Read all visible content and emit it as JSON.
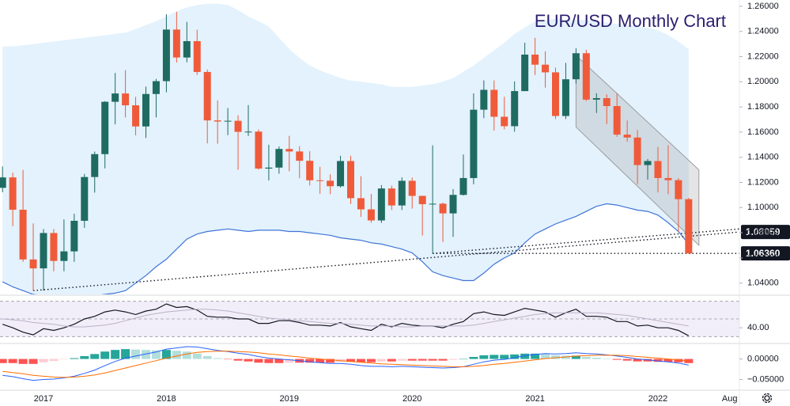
{
  "chart_data": [
    {
      "type": "candlestick",
      "title": "EUR/USD Monthly Chart",
      "categories": [
        null,
        null,
        null,
        null,
        "2017",
        null,
        null,
        null,
        null,
        null,
        null,
        null,
        null,
        null,
        null,
        null,
        "2018",
        null,
        null,
        null,
        null,
        null,
        null,
        null,
        null,
        null,
        null,
        null,
        "2019",
        null,
        null,
        null,
        null,
        null,
        null,
        null,
        null,
        null,
        null,
        null,
        "2020",
        null,
        null,
        null,
        null,
        null,
        null,
        null,
        null,
        null,
        null,
        null,
        "2021",
        null,
        null,
        null,
        null,
        null,
        null,
        null,
        null,
        null,
        null,
        null,
        "2022",
        null,
        null,
        null,
        null,
        null,
        null,
        "Aug"
      ],
      "open": [
        1.1157,
        1.124,
        1.0983,
        1.0588,
        1.0517,
        1.0798,
        1.0576,
        1.0652,
        1.0895,
        1.1243,
        1.1425,
        1.1841,
        1.1907,
        1.1813,
        1.1645,
        1.1903,
        1.2005,
        1.2415,
        1.2193,
        1.2323,
        1.2078,
        1.1693,
        1.1684,
        1.169,
        1.1602,
        1.1604,
        1.131,
        1.1318,
        1.1466,
        1.1446,
        1.1372,
        1.1217,
        1.1214,
        1.117,
        1.137,
        1.1075,
        1.0986,
        1.0898,
        1.1152,
        1.1017,
        1.1213,
        1.1093,
        1.1027,
        1.1031,
        1.0954,
        1.1101,
        1.1235,
        1.1778,
        1.1936,
        1.1722,
        1.1647,
        1.1926,
        1.2216,
        1.2136,
        1.2075,
        1.1728,
        1.202,
        1.2227,
        1.1858,
        1.187,
        1.1807,
        1.158,
        1.1557,
        1.1338,
        1.137,
        1.1235,
        1.1218,
        1.1067,
        null,
        null,
        null,
        null
      ],
      "high": [
        1.1327,
        1.1278,
        1.13,
        1.0874,
        1.0829,
        1.0829,
        1.0906,
        1.0951,
        1.1268,
        1.1445,
        1.1846,
        1.207,
        1.2092,
        1.188,
        1.1961,
        1.2023,
        1.2537,
        1.2556,
        1.2476,
        1.2414,
        1.2097,
        1.1852,
        1.1791,
        1.1734,
        1.1815,
        1.1621,
        1.15,
        1.1486,
        1.157,
        1.1488,
        1.1448,
        1.1324,
        1.1265,
        1.1412,
        1.1412,
        1.125,
        1.1109,
        1.1179,
        1.1175,
        1.124,
        1.1239,
        1.1095,
        1.1495,
        1.104,
        1.1147,
        1.1422,
        1.1908,
        1.2011,
        1.2011,
        1.1881,
        1.2003,
        1.231,
        1.2349,
        1.2243,
        1.2113,
        1.215,
        1.2266,
        1.2254,
        1.1909,
        1.19,
        1.1909,
        1.1692,
        1.1616,
        1.1386,
        1.1482,
        1.1495,
        1.1234,
        1.1077,
        null,
        null,
        null,
        null
      ],
      "low": [
        1.1122,
        1.0852,
        1.0569,
        1.034,
        1.0341,
        1.0494,
        1.0494,
        1.0569,
        1.0839,
        1.1119,
        1.1312,
        1.1662,
        1.1717,
        1.1574,
        1.1554,
        1.1717,
        1.1916,
        1.2153,
        1.2155,
        1.2055,
        1.151,
        1.1508,
        1.1576,
        1.1301,
        1.1569,
        1.1302,
        1.1216,
        1.1269,
        1.1289,
        1.1234,
        1.1176,
        1.111,
        1.1107,
        1.116,
        1.1028,
        1.0926,
        1.0879,
        1.0879,
        1.0981,
        1.0981,
        1.0992,
        1.0778,
        1.0636,
        1.0727,
        1.0767,
        1.1096,
        1.1185,
        1.1711,
        1.1612,
        1.1622,
        1.1603,
        1.1925,
        1.2054,
        1.1953,
        1.1704,
        1.1704,
        1.1986,
        1.1847,
        1.1752,
        1.1664,
        1.1563,
        1.1524,
        1.1186,
        1.1222,
        1.1121,
        1.1106,
        1.0806,
        1.0636,
        null,
        null,
        null,
        null
      ],
      "close": [
        1.124,
        1.0983,
        1.0588,
        1.0517,
        1.0798,
        1.0576,
        1.0652,
        1.0895,
        1.1243,
        1.1425,
        1.1841,
        1.1907,
        1.1813,
        1.1645,
        1.1903,
        1.2005,
        1.2415,
        1.2193,
        1.2323,
        1.2078,
        1.1693,
        1.1684,
        1.169,
        1.1602,
        1.1604,
        1.131,
        1.1318,
        1.1466,
        1.1446,
        1.1372,
        1.1217,
        1.1214,
        1.117,
        1.137,
        1.1075,
        1.0986,
        1.0898,
        1.1152,
        1.1017,
        1.1213,
        1.1093,
        1.1027,
        1.1031,
        1.0954,
        1.1101,
        1.1235,
        1.1778,
        1.1936,
        1.1722,
        1.1647,
        1.1926,
        1.2216,
        1.2136,
        1.2075,
        1.1728,
        1.202,
        1.2227,
        1.1858,
        1.187,
        1.1807,
        1.158,
        1.1557,
        1.1338,
        1.137,
        1.1235,
        1.1218,
        1.1067,
        1.0636,
        null,
        null,
        null,
        null
      ],
      "up_color": "#1f6b62",
      "down_color": "#ef5b3a",
      "bands": {
        "upper": [
          1.228,
          1.228,
          1.229,
          1.23,
          1.231,
          1.232,
          1.233,
          1.234,
          1.235,
          1.236,
          1.237,
          1.238,
          1.239,
          1.242,
          1.245,
          1.248,
          1.252,
          1.256,
          1.259,
          1.261,
          1.262,
          1.262,
          1.261,
          1.257,
          1.252,
          1.248,
          1.244,
          1.235,
          1.226,
          1.219,
          1.213,
          1.209,
          1.206,
          1.203,
          1.201,
          1.2,
          1.199,
          1.198,
          1.196,
          1.196,
          1.196,
          1.197,
          1.198,
          1.2,
          1.203,
          1.208,
          1.213,
          1.219,
          1.225,
          1.231,
          1.238,
          1.243,
          1.248,
          1.249,
          1.25,
          1.25,
          1.249,
          1.249,
          1.248,
          1.247,
          1.246,
          1.245,
          1.244,
          1.243,
          1.241,
          1.237,
          1.232,
          1.226,
          null,
          null,
          null,
          null
        ],
        "lower": [
          1.041,
          1.037,
          1.034,
          1.031,
          1.03,
          1.029,
          1.029,
          1.029,
          1.029,
          1.03,
          1.031,
          1.032,
          1.034,
          1.04,
          1.046,
          1.053,
          1.059,
          1.067,
          1.075,
          1.079,
          1.081,
          1.082,
          1.083,
          1.082,
          1.081,
          1.082,
          1.082,
          1.082,
          1.081,
          1.081,
          1.08,
          1.079,
          1.078,
          1.076,
          1.075,
          1.074,
          1.072,
          1.071,
          1.069,
          1.067,
          1.064,
          1.057,
          1.049,
          1.046,
          1.044,
          1.042,
          1.042,
          1.048,
          1.055,
          1.06,
          1.064,
          1.072,
          1.079,
          1.083,
          1.087,
          1.09,
          1.093,
          1.097,
          1.101,
          1.103,
          1.102,
          1.1,
          1.098,
          1.097,
          1.094,
          1.088,
          1.081,
          1.071,
          null,
          null,
          null,
          null
        ],
        "fill": "#e3f2fd",
        "line_color": "#3f74d6"
      },
      "channel": {
        "upper": [
          1.221,
          1.13
        ],
        "lower": [
          1.164,
          1.07
        ],
        "color": "#9e9e9e"
      },
      "lines": [
        {
          "values": [
            1.034,
            1.08059
          ],
          "label": "1.08059"
        },
        {
          "values": [
            1.0636,
            1.0636
          ],
          "label": "1.06360"
        },
        {
          "values": [
            1.0636,
            1.083
          ]
        }
      ],
      "ylim": [
        1.031,
        1.265
      ],
      "yticks": [
        {
          "value": 1.26,
          "label": "1.26000"
        },
        {
          "value": 1.24,
          "label": "1.24000"
        },
        {
          "value": 1.22,
          "label": "1.22000"
        },
        {
          "value": 1.2,
          "label": "1.20000"
        },
        {
          "value": 1.18,
          "label": "1.18000"
        },
        {
          "value": 1.16,
          "label": "1.16000"
        },
        {
          "value": 1.14,
          "label": "1.14000"
        },
        {
          "value": 1.12,
          "label": "1.12000"
        },
        {
          "value": 1.1,
          "label": "1.10000"
        },
        {
          "value": 1.08,
          "label": "1.08000"
        },
        {
          "value": 1.06,
          "label": "1.06000"
        },
        {
          "value": 1.04,
          "label": "1.04000"
        }
      ]
    },
    {
      "type": "line",
      "series": [
        {
          "color": "#131722",
          "values": [
            44,
            40,
            35,
            32,
            39,
            37,
            40,
            44,
            50,
            53,
            58,
            60,
            58,
            55,
            59,
            61,
            67,
            63,
            64,
            60,
            53,
            52,
            52,
            50,
            50,
            45,
            45,
            48,
            48,
            46,
            43,
            43,
            42,
            46,
            41,
            39,
            37,
            44,
            41,
            45,
            43,
            42,
            42,
            40,
            44,
            47,
            56,
            58,
            55,
            54,
            58,
            62,
            60,
            58,
            52,
            57,
            61,
            53,
            53,
            52,
            47,
            47,
            42,
            43,
            40,
            40,
            37,
            31,
            null,
            null,
            null,
            null
          ]
        },
        {
          "color": "#b9b2c8",
          "values": [
            50,
            49,
            48,
            46,
            45,
            44,
            42,
            41,
            41,
            42,
            43,
            45,
            48,
            51,
            54,
            56,
            58,
            59,
            60,
            61,
            61,
            60,
            59,
            57,
            55,
            53,
            51,
            50,
            49,
            48,
            47,
            46,
            45,
            45,
            44,
            43,
            42,
            42,
            42,
            41,
            41,
            42,
            42,
            42,
            42,
            42,
            43,
            45,
            47,
            49,
            51,
            53,
            55,
            56,
            57,
            57,
            57,
            57,
            57,
            56,
            55,
            54,
            52,
            50,
            48,
            46,
            44,
            42,
            null,
            null,
            null,
            null
          ]
        }
      ],
      "levels": [
        70,
        50,
        30
      ],
      "band_color": "#7e57c2",
      "ylim": [
        24,
        76
      ],
      "yticks": [
        {
          "value": 40,
          "label": "40.00"
        }
      ]
    },
    {
      "type": "bar",
      "values": [
        -0.01,
        -0.01,
        -0.012,
        -0.012,
        -0.008,
        -0.005,
        -0.001,
        0.002,
        0.007,
        0.012,
        0.018,
        0.022,
        0.024,
        0.023,
        0.022,
        0.021,
        0.022,
        0.02,
        0.018,
        0.013,
        0.007,
        0.002,
        -0.001,
        -0.004,
        -0.006,
        -0.009,
        -0.01,
        -0.01,
        -0.009,
        -0.009,
        -0.009,
        -0.009,
        -0.009,
        -0.007,
        -0.007,
        -0.008,
        -0.008,
        -0.006,
        -0.006,
        -0.004,
        -0.004,
        -0.004,
        -0.004,
        -0.004,
        -0.002,
        0.0,
        0.005,
        0.009,
        0.01,
        0.01,
        0.011,
        0.013,
        0.013,
        0.012,
        0.009,
        0.008,
        0.008,
        0.005,
        0.003,
        0.001,
        -0.002,
        -0.004,
        -0.006,
        -0.006,
        -0.007,
        -0.007,
        -0.008,
        -0.01,
        null,
        null,
        null,
        null
      ],
      "colors": {
        "rising_above": "#26a69a",
        "falling_above": "#b2dfdb",
        "rising_below": "#ffcdd2",
        "falling_below": "#ff5252"
      },
      "series": [
        {
          "color": "#2962ff",
          "values": [
            -0.04,
            -0.043,
            -0.048,
            -0.052,
            -0.05,
            -0.049,
            -0.046,
            -0.042,
            -0.035,
            -0.027,
            -0.016,
            -0.006,
            0.002,
            0.007,
            0.012,
            0.017,
            0.024,
            0.027,
            0.03,
            0.029,
            0.025,
            0.021,
            0.018,
            0.014,
            0.011,
            0.006,
            0.002,
            0.0,
            -0.002,
            -0.004,
            -0.007,
            -0.009,
            -0.011,
            -0.011,
            -0.013,
            -0.016,
            -0.018,
            -0.018,
            -0.019,
            -0.018,
            -0.019,
            -0.02,
            -0.021,
            -0.022,
            -0.021,
            -0.019,
            -0.013,
            -0.007,
            -0.003,
            -0.001,
            0.003,
            0.008,
            0.011,
            0.013,
            0.012,
            0.013,
            0.015,
            0.013,
            0.012,
            0.01,
            0.007,
            0.004,
            0.0,
            -0.002,
            -0.005,
            -0.007,
            -0.01,
            -0.015,
            null,
            null,
            null,
            null
          ]
        },
        {
          "color": "#ff6d00",
          "values": [
            -0.03,
            -0.033,
            -0.036,
            -0.04,
            -0.042,
            -0.044,
            -0.045,
            -0.044,
            -0.042,
            -0.039,
            -0.034,
            -0.028,
            -0.022,
            -0.016,
            -0.01,
            -0.004,
            0.002,
            0.007,
            0.012,
            0.016,
            0.018,
            0.019,
            0.019,
            0.018,
            0.017,
            0.015,
            0.012,
            0.01,
            0.007,
            0.005,
            0.002,
            0.0,
            -0.002,
            -0.004,
            -0.006,
            -0.008,
            -0.01,
            -0.012,
            -0.013,
            -0.014,
            -0.015,
            -0.016,
            -0.017,
            -0.018,
            -0.019,
            -0.019,
            -0.018,
            -0.016,
            -0.013,
            -0.011,
            -0.008,
            -0.005,
            -0.002,
            0.001,
            0.003,
            0.005,
            0.007,
            0.008,
            0.009,
            0.009,
            0.009,
            0.008,
            0.006,
            0.004,
            0.002,
            0.0,
            -0.002,
            -0.005,
            null,
            null,
            null,
            null
          ]
        }
      ],
      "ylim": [
        -0.074,
        0.03
      ],
      "yticks": [
        {
          "value": 0,
          "label": "0.00000"
        },
        {
          "value": -0.05,
          "label": "−0.05000"
        }
      ]
    }
  ]
}
